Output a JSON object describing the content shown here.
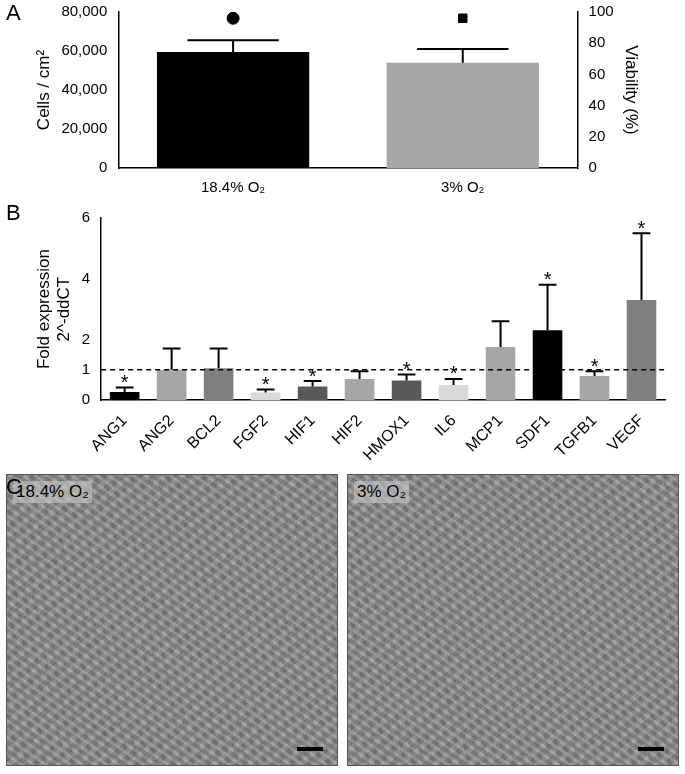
{
  "chart_data": [
    {
      "type": "bar",
      "title": "A",
      "categories": [
        "18.4% O₂",
        "3% O₂"
      ],
      "y_label": "Cells / cm²",
      "y2_label": "Viability (%)",
      "ylim": [
        0,
        80000
      ],
      "yticks": [
        0,
        {
          "value": 20000,
          "label": "20,000"
        },
        {
          "value": 40000,
          "label": "40,000"
        },
        {
          "value": 60000,
          "label": "60,000"
        },
        {
          "value": 80000,
          "label": "80,000"
        }
      ],
      "y2lim": [
        0,
        100
      ],
      "y2ticks": [
        0,
        20,
        40,
        60,
        80,
        100
      ],
      "grid": false,
      "series": [
        {
          "type": "bar",
          "values": [
            59500,
            54000
          ],
          "errors": [
            6000,
            7000
          ],
          "colors": [
            "#000000",
            "#a6a6a6"
          ]
        },
        {
          "type": "line",
          "axis": "y2",
          "marker": "circle",
          "line_style": "none",
          "color": "#000000",
          "values": [
            96,
            null
          ]
        },
        {
          "type": "line",
          "axis": "y2",
          "marker": "square",
          "line_style": "none",
          "color": "#000000",
          "values": [
            null,
            96
          ]
        }
      ]
    },
    {
      "type": "bar",
      "title": "B",
      "categories": [
        "ANG1",
        "ANG2",
        "BCL2",
        "FGF2",
        "HIF1",
        "HIF2",
        "HMOX1",
        "IL6",
        "MCP1",
        "SDF1",
        "TGFB1",
        "VEGF"
      ],
      "y_label": [
        "Fold expression",
        "2^-ddCT"
      ],
      "ylim": [
        0,
        6
      ],
      "yticks": [
        0,
        1,
        2,
        4,
        6
      ],
      "grid": false,
      "reference_line": 1,
      "series": [
        {
          "type": "bar",
          "values": [
            0.27,
            1.0,
            1.05,
            0.25,
            0.45,
            0.7,
            0.65,
            0.5,
            1.75,
            2.3,
            0.8,
            3.3
          ],
          "errors": [
            0.15,
            0.7,
            0.65,
            0.1,
            0.18,
            0.25,
            0.2,
            0.2,
            0.85,
            1.5,
            0.15,
            2.2
          ],
          "colors": [
            "#000000",
            "#a6a6a6",
            "#7f7f7f",
            "#d9d9d9",
            "#595959",
            "#a6a6a6",
            "#595959",
            "#d9d9d9",
            "#a6a6a6",
            "#000000",
            "#a6a6a6",
            "#7f7f7f"
          ]
        }
      ],
      "annotations": [
        {
          "category": "ANG1",
          "text": "*"
        },
        {
          "category": "FGF2",
          "text": "*"
        },
        {
          "category": "HIF1",
          "text": "*"
        },
        {
          "category": "HMOX1",
          "text": "*"
        },
        {
          "category": "IL6",
          "text": "*"
        },
        {
          "category": "SDF1",
          "text": "*"
        },
        {
          "category": "TGFB1",
          "text": "*"
        },
        {
          "category": "VEGF",
          "text": "*"
        }
      ]
    }
  ],
  "images": {
    "title": "C",
    "panels": [
      {
        "label": "18.4% O₂"
      },
      {
        "label": "3% O₂"
      }
    ]
  }
}
